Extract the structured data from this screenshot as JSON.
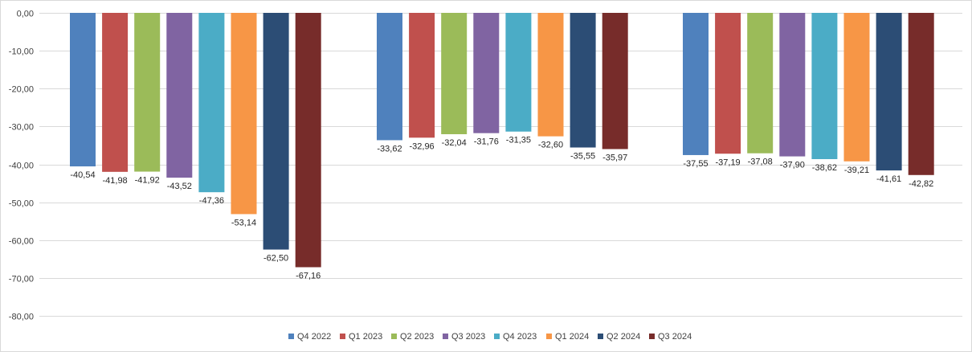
{
  "chart_data": {
    "type": "bar",
    "title": "",
    "xlabel": "",
    "ylabel": "",
    "ylim": [
      -80,
      0
    ],
    "yticks": [
      "0,00",
      "-10,00",
      "-20,00",
      "-30,00",
      "-40,00",
      "-50,00",
      "-60,00",
      "-70,00",
      "-80,00"
    ],
    "ytick_values": [
      0,
      -10,
      -20,
      -30,
      -40,
      -50,
      -60,
      -70,
      -80
    ],
    "grid": true,
    "legend_position": "bottom",
    "groups": 3,
    "series": [
      {
        "name": "Q4 2022",
        "color": "#4f81bd",
        "values": [
          -40.54,
          -33.62,
          -37.55
        ],
        "labels": [
          "-40,54",
          "-33,62",
          "-37,55"
        ]
      },
      {
        "name": "Q1 2023",
        "color": "#c0504d",
        "values": [
          -41.98,
          -32.96,
          -37.19
        ],
        "labels": [
          "-41,98",
          "-32,96",
          "-37,19"
        ]
      },
      {
        "name": "Q2 2023",
        "color": "#9bbb59",
        "values": [
          -41.92,
          -32.04,
          -37.08
        ],
        "labels": [
          "-41,92",
          "-32,04",
          "-37,08"
        ]
      },
      {
        "name": "Q3 2023",
        "color": "#8064a2",
        "values": [
          -43.52,
          -31.76,
          -37.9
        ],
        "labels": [
          "-43,52",
          "-31,76",
          "-37,90"
        ]
      },
      {
        "name": "Q4 2023",
        "color": "#4bacc6",
        "values": [
          -47.36,
          -31.35,
          -38.62
        ],
        "labels": [
          "-47,36",
          "-31,35",
          "-38,62"
        ]
      },
      {
        "name": "Q1 2024",
        "color": "#f79646",
        "values": [
          -53.14,
          -32.6,
          -39.21
        ],
        "labels": [
          "-53,14",
          "-32,60",
          "-39,21"
        ]
      },
      {
        "name": "Q2 2024",
        "color": "#2c4d75",
        "values": [
          -62.5,
          -35.55,
          -41.61
        ],
        "labels": [
          "-62,50",
          "-35,55",
          "-41,61"
        ]
      },
      {
        "name": "Q3 2024",
        "color": "#772c2a",
        "values": [
          -67.16,
          -35.97,
          -42.82
        ],
        "labels": [
          "-67,16",
          "-35,97",
          "-42,82"
        ]
      }
    ]
  }
}
